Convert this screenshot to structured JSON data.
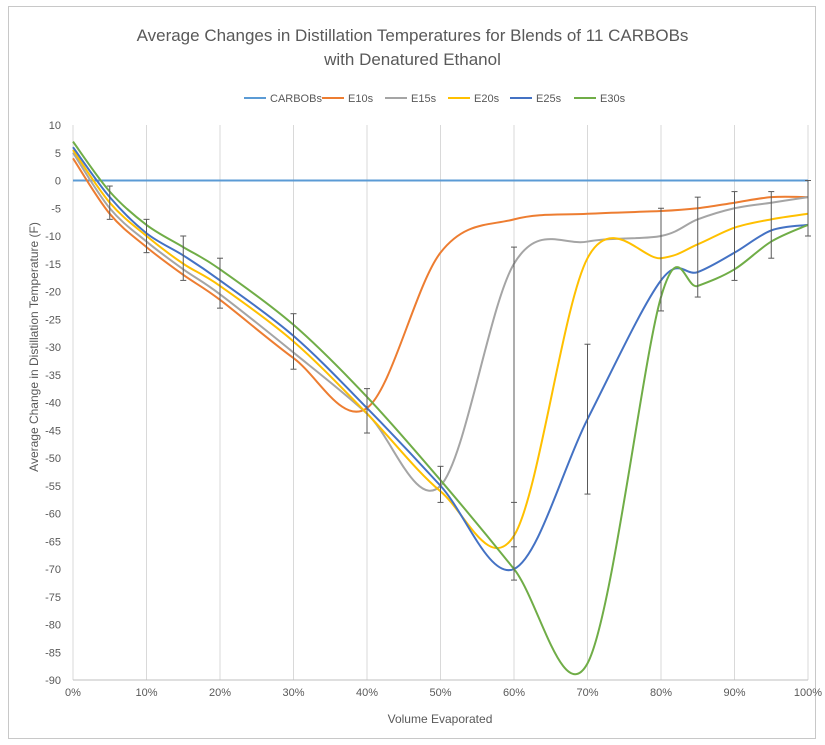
{
  "chart_data": {
    "type": "line",
    "title": "Average Changes in Distillation Temperatures for Blends of 11 CARBOBs",
    "subtitle": "with Denatured Ethanol",
    "xlabel": "Volume Evaporated",
    "ylabel": "Average Change in Distillation Temperature (F)",
    "x": [
      0,
      5,
      10,
      15,
      20,
      30,
      40,
      50,
      60,
      70,
      80,
      85,
      90,
      95,
      100
    ],
    "x_tick_values": [
      0,
      10,
      20,
      30,
      40,
      50,
      60,
      70,
      80,
      90,
      100
    ],
    "x_tick_labels": [
      "0%",
      "10%",
      "20%",
      "30%",
      "40%",
      "50%",
      "60%",
      "70%",
      "80%",
      "90%",
      "100%"
    ],
    "ylim": [
      -90,
      10
    ],
    "y_ticks": [
      10,
      5,
      0,
      -5,
      -10,
      -15,
      -20,
      -25,
      -30,
      -35,
      -40,
      -45,
      -50,
      -55,
      -60,
      -65,
      -70,
      -75,
      -80,
      -85,
      -90
    ],
    "grid": "vertical",
    "legend_position": "top",
    "series": [
      {
        "name": "CARBOBs",
        "color": "#5b9bd5",
        "values": [
          0,
          0,
          0,
          0,
          0,
          0,
          0,
          0,
          0,
          0,
          0,
          0,
          0,
          0,
          0
        ]
      },
      {
        "name": "E10s",
        "color": "#ed7d31",
        "values": [
          4,
          -6,
          -12,
          -17,
          -21.5,
          -32,
          -41,
          -13,
          -7,
          -6,
          -5.5,
          -5,
          -4,
          -3,
          -3
        ]
      },
      {
        "name": "E15s",
        "color": "#a5a5a5",
        "values": [
          5,
          -5,
          -11,
          -16,
          -20.5,
          -31,
          -42,
          -55,
          -15,
          -11,
          -10,
          -7,
          -5,
          -4,
          -3
        ]
      },
      {
        "name": "E20s",
        "color": "#ffc000",
        "values": [
          5.5,
          -4,
          -10,
          -15,
          -19,
          -29,
          -42,
          -56,
          -64,
          -14,
          -14,
          -11.5,
          -8.5,
          -7,
          -6
        ]
      },
      {
        "name": "E25s",
        "color": "#4472c4",
        "values": [
          6,
          -3,
          -9.5,
          -13.5,
          -18,
          -28,
          -41,
          -55,
          -70,
          -43,
          -18,
          -16.5,
          -13,
          -9,
          -8
        ]
      },
      {
        "name": "E30s",
        "color": "#70ad47",
        "values": [
          7,
          -2,
          -8,
          -12,
          -16,
          -26,
          -39,
          -54,
          -70,
          -87,
          -21,
          -19,
          -16,
          -11,
          -8
        ]
      }
    ],
    "error_bars": {
      "x": [
        5,
        10,
        15,
        20,
        30,
        40,
        50,
        60,
        60,
        70,
        80,
        85,
        90,
        95,
        100
      ],
      "low": [
        -7,
        -13,
        -18,
        -23,
        -34,
        -45.5,
        -58,
        -72,
        -66,
        -56.5,
        -23.5,
        -21,
        -18,
        -14,
        -10
      ],
      "high": [
        -1,
        -7,
        -10,
        -14,
        -24,
        -37.5,
        -51.5,
        -58,
        -12,
        -29.5,
        -5,
        -3,
        -2,
        -2,
        0
      ]
    }
  }
}
